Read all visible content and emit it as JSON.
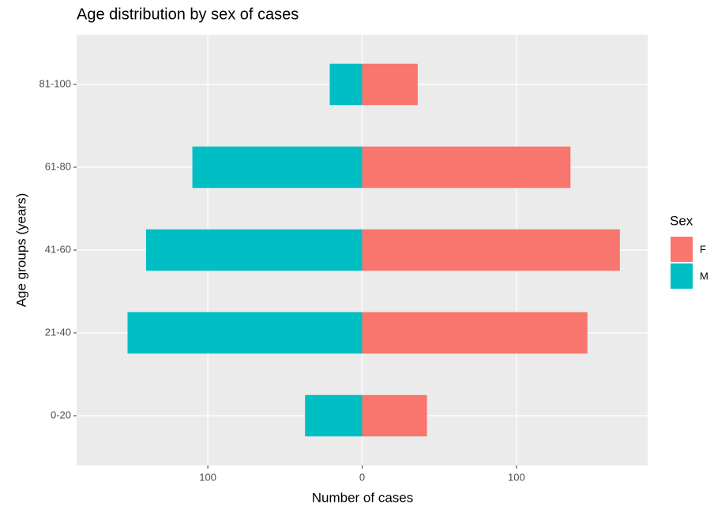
{
  "chart_data": {
    "type": "bar",
    "orientation": "horizontal",
    "stacked": false,
    "title": "Age distribution by sex of cases",
    "x_label": "Number of cases",
    "y_label": "Age groups (years)",
    "categories": [
      "0-20",
      "21-40",
      "41-60",
      "61-80",
      "81-100"
    ],
    "series": [
      {
        "name": "F",
        "color": "#f8766d",
        "values": [
          42,
          146,
          167,
          135,
          36
        ]
      },
      {
        "name": "M",
        "color": "#00bfc4",
        "values": [
          -37,
          -152,
          -140,
          -110,
          -21
        ]
      }
    ],
    "xlim": [
      -185,
      185
    ],
    "xticks": [
      {
        "value": -100,
        "label": "100"
      },
      0,
      100
    ],
    "grid": true,
    "legend_title": "Sex",
    "legend": "right"
  }
}
